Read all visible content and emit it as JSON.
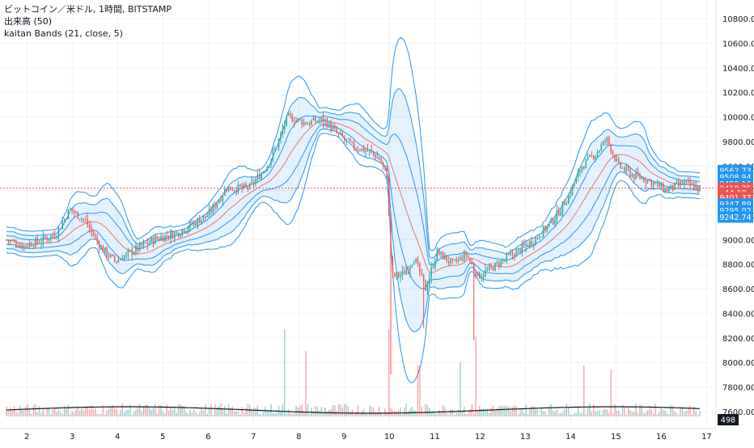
{
  "legend": {
    "symbol_line": "ビットコイン／米ドル, 1時間, BITSTAMP",
    "volume_line": "出来高 (50)",
    "bands_line": "kaitan Bands (21, close, 5)"
  },
  "colors": {
    "up": "#26a69a",
    "down": "#ef5350",
    "band": "#2196f3",
    "basis": "#e57373",
    "fill": "rgba(33,150,243,0.12)",
    "grid": "#f0f3fa",
    "axis_text": "#131722"
  },
  "chart_data": {
    "type": "candlestick",
    "ylim": [
      7500,
      10900
    ],
    "y_ticks": [
      7600,
      7800,
      8000,
      8200,
      8400,
      8600,
      8800,
      9000,
      9200,
      9400,
      9600,
      9800,
      10000,
      10200,
      10400,
      10600,
      10800
    ],
    "y_tick_labels": [
      "7600.00",
      "7800.00",
      "8000.00",
      "8200.00",
      "8400.00",
      "8600.00",
      "8800.00",
      "9000.00",
      "9200.00",
      "9400.00",
      "9600.00",
      "9800.00",
      "10000.00",
      "10200.00",
      "10400.00",
      "10600.00",
      "10800.00"
    ],
    "x_day_labels": [
      "2",
      "3",
      "4",
      "5",
      "6",
      "7",
      "8",
      "9",
      "10",
      "11",
      "12",
      "13",
      "14",
      "15",
      "16",
      "17"
    ],
    "x_day_positions": [
      2,
      3,
      4,
      5,
      6,
      7,
      8,
      9,
      10,
      11,
      12,
      13,
      14,
      15,
      16,
      17
    ],
    "x_range": [
      1.55,
      16.85
    ],
    "current_price": 9418.75,
    "badges": [
      {
        "label": "9562.73",
        "value": 9562.73,
        "color": "#2196f3"
      },
      {
        "label": "9508.94",
        "value": 9508.94,
        "color": "#2196f3"
      },
      {
        "label": "9455.16",
        "value": 9455.16,
        "color": "#2196f3"
      },
      {
        "label": "9418.75",
        "value": 9418.75,
        "color": "#ef5350"
      },
      {
        "label": "44:18",
        "value": 9380,
        "color": "#ef5350"
      },
      {
        "label": "9401.37",
        "value": 9343,
        "color": "#ef5350"
      },
      {
        "label": "9347.89",
        "value": 9290,
        "color": "#2196f3"
      },
      {
        "label": "9295.02",
        "value": 9237,
        "color": "#2196f3"
      },
      {
        "label": "9242.74",
        "value": 9184,
        "color": "#2196f3"
      }
    ],
    "volume_badge": "498",
    "price_path": [
      {
        "t": 1.55,
        "p": 9000
      },
      {
        "t": 1.9,
        "p": 8950
      },
      {
        "t": 2.3,
        "p": 8990
      },
      {
        "t": 2.65,
        "p": 9050
      },
      {
        "t": 2.95,
        "p": 9250
      },
      {
        "t": 3.3,
        "p": 9150
      },
      {
        "t": 3.6,
        "p": 8950
      },
      {
        "t": 3.95,
        "p": 8820
      },
      {
        "t": 4.3,
        "p": 8900
      },
      {
        "t": 4.8,
        "p": 9000
      },
      {
        "t": 5.3,
        "p": 9050
      },
      {
        "t": 5.75,
        "p": 9150
      },
      {
        "t": 6.0,
        "p": 9200
      },
      {
        "t": 6.4,
        "p": 9420
      },
      {
        "t": 6.9,
        "p": 9420
      },
      {
        "t": 7.3,
        "p": 9600
      },
      {
        "t": 7.55,
        "p": 9800
      },
      {
        "t": 7.75,
        "p": 10000
      },
      {
        "t": 8.15,
        "p": 9950
      },
      {
        "t": 8.55,
        "p": 9980
      },
      {
        "t": 8.85,
        "p": 9860
      },
      {
        "t": 9.2,
        "p": 9760
      },
      {
        "t": 9.55,
        "p": 9720
      },
      {
        "t": 9.8,
        "p": 9650
      },
      {
        "t": 9.95,
        "p": 9520
      },
      {
        "t": 10.05,
        "p": 8700
      },
      {
        "t": 10.3,
        "p": 8720
      },
      {
        "t": 10.55,
        "p": 8850
      },
      {
        "t": 10.8,
        "p": 8600
      },
      {
        "t": 11.05,
        "p": 8900
      },
      {
        "t": 11.4,
        "p": 8800
      },
      {
        "t": 11.7,
        "p": 8880
      },
      {
        "t": 11.95,
        "p": 8700
      },
      {
        "t": 12.4,
        "p": 8800
      },
      {
        "t": 12.8,
        "p": 8900
      },
      {
        "t": 13.2,
        "p": 9000
      },
      {
        "t": 13.6,
        "p": 9150
      },
      {
        "t": 13.95,
        "p": 9350
      },
      {
        "t": 14.25,
        "p": 9600
      },
      {
        "t": 14.55,
        "p": 9700
      },
      {
        "t": 14.8,
        "p": 9820
      },
      {
        "t": 15.05,
        "p": 9600
      },
      {
        "t": 15.4,
        "p": 9520
      },
      {
        "t": 15.75,
        "p": 9480
      },
      {
        "t": 16.1,
        "p": 9400
      },
      {
        "t": 16.5,
        "p": 9460
      },
      {
        "t": 16.85,
        "p": 9418
      }
    ],
    "volume_spikes": [
      {
        "t": 7.7,
        "v": 1.0
      },
      {
        "t": 8.15,
        "v": 0.7
      },
      {
        "t": 10.0,
        "v": 1.0
      },
      {
        "t": 10.65,
        "v": 0.5
      },
      {
        "t": 11.9,
        "v": 0.9
      },
      {
        "t": 11.55,
        "v": 0.55
      },
      {
        "t": 14.3,
        "v": 0.5
      },
      {
        "t": 14.9,
        "v": 0.45
      }
    ]
  }
}
